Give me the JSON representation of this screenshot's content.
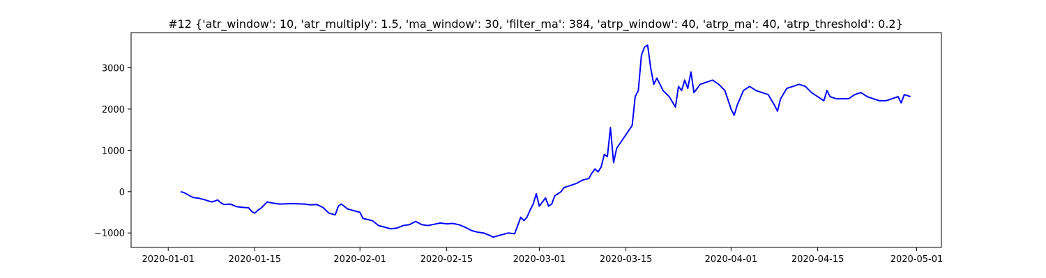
{
  "chart_data": {
    "type": "line",
    "title": "#12 {'atr_window': 10, 'atr_multiply': 1.5, 'ma_window': 30, 'filter_ma': 384, 'atrp_window': 40, 'atrp_ma': 40, 'atrp_threshold': 0.2}",
    "xlabel": "",
    "ylabel": "",
    "xlim": [
      "2019-12-26",
      "2020-05-05"
    ],
    "ylim": [
      -1350,
      3850
    ],
    "grid": false,
    "x_ticks": [
      "2020-01-01",
      "2020-01-15",
      "2020-02-01",
      "2020-02-15",
      "2020-03-01",
      "2020-03-15",
      "2020-04-01",
      "2020-04-15",
      "2020-05-01"
    ],
    "y_ticks": [
      -1000,
      0,
      1000,
      2000,
      3000
    ],
    "y_tick_labels": [
      "−1000",
      "0",
      "1000",
      "2000",
      "3000"
    ],
    "series": [
      {
        "color": "#0000ff",
        "points": [
          [
            "2020-01-03",
            0
          ],
          [
            "2020-01-03T12",
            -20
          ],
          [
            "2020-01-04",
            -60
          ],
          [
            "2020-01-04T12",
            -100
          ],
          [
            "2020-01-05",
            -140
          ],
          [
            "2020-01-06",
            -160
          ],
          [
            "2020-01-07",
            -200
          ],
          [
            "2020-01-08",
            -250
          ],
          [
            "2020-01-08T12",
            -230
          ],
          [
            "2020-01-09",
            -200
          ],
          [
            "2020-01-09T12",
            -270
          ],
          [
            "2020-01-10",
            -310
          ],
          [
            "2020-01-11",
            -300
          ],
          [
            "2020-01-12",
            -360
          ],
          [
            "2020-01-13",
            -380
          ],
          [
            "2020-01-14",
            -390
          ],
          [
            "2020-01-14T12",
            -480
          ],
          [
            "2020-01-15",
            -520
          ],
          [
            "2020-01-15T12",
            -450
          ],
          [
            "2020-01-16",
            -400
          ],
          [
            "2020-01-17",
            -250
          ],
          [
            "2020-01-18",
            -280
          ],
          [
            "2020-01-19",
            -300
          ],
          [
            "2020-01-21",
            -290
          ],
          [
            "2020-01-23",
            -300
          ],
          [
            "2020-01-24",
            -320
          ],
          [
            "2020-01-25",
            -310
          ],
          [
            "2020-01-26",
            -380
          ],
          [
            "2020-01-27",
            -520
          ],
          [
            "2020-01-28",
            -560
          ],
          [
            "2020-01-28T12",
            -350
          ],
          [
            "2020-01-29",
            -300
          ],
          [
            "2020-01-30",
            -420
          ],
          [
            "2020-01-31",
            -460
          ],
          [
            "2020-02-01",
            -500
          ],
          [
            "2020-02-01T12",
            -650
          ],
          [
            "2020-02-03",
            -700
          ],
          [
            "2020-02-04",
            -820
          ],
          [
            "2020-02-05",
            -860
          ],
          [
            "2020-02-06",
            -900
          ],
          [
            "2020-02-07",
            -880
          ],
          [
            "2020-02-08",
            -820
          ],
          [
            "2020-02-09",
            -800
          ],
          [
            "2020-02-10",
            -720
          ],
          [
            "2020-02-11",
            -800
          ],
          [
            "2020-02-12",
            -820
          ],
          [
            "2020-02-13",
            -790
          ],
          [
            "2020-02-14",
            -760
          ],
          [
            "2020-02-15",
            -780
          ],
          [
            "2020-02-16",
            -770
          ],
          [
            "2020-02-17",
            -800
          ],
          [
            "2020-02-18",
            -860
          ],
          [
            "2020-02-19",
            -940
          ],
          [
            "2020-02-20",
            -980
          ],
          [
            "2020-02-21",
            -1000
          ],
          [
            "2020-02-22",
            -1060
          ],
          [
            "2020-02-22T12",
            -1100
          ],
          [
            "2020-02-23",
            -1080
          ],
          [
            "2020-02-25",
            -1000
          ],
          [
            "2020-02-26",
            -1020
          ],
          [
            "2020-02-26T12",
            -820
          ],
          [
            "2020-02-27",
            -620
          ],
          [
            "2020-02-27T12",
            -700
          ],
          [
            "2020-02-28",
            -620
          ],
          [
            "2020-02-28T12",
            -450
          ],
          [
            "2020-02-29",
            -300
          ],
          [
            "2020-02-29T12",
            -50
          ],
          [
            "2020-03-01",
            -350
          ],
          [
            "2020-03-01T12",
            -250
          ],
          [
            "2020-03-02",
            -150
          ],
          [
            "2020-03-02T12",
            -350
          ],
          [
            "2020-03-03",
            -300
          ],
          [
            "2020-03-03T12",
            -100
          ],
          [
            "2020-03-04",
            -50
          ],
          [
            "2020-03-04T12",
            0
          ],
          [
            "2020-03-05",
            100
          ],
          [
            "2020-03-06",
            150
          ],
          [
            "2020-03-07",
            200
          ],
          [
            "2020-03-08",
            280
          ],
          [
            "2020-03-09",
            320
          ],
          [
            "2020-03-09T12",
            450
          ],
          [
            "2020-03-10",
            550
          ],
          [
            "2020-03-10T12",
            480
          ],
          [
            "2020-03-11",
            600
          ],
          [
            "2020-03-11T12",
            900
          ],
          [
            "2020-03-12",
            850
          ],
          [
            "2020-03-12T12",
            1550
          ],
          [
            "2020-03-13",
            700
          ],
          [
            "2020-03-13T12",
            1050
          ],
          [
            "2020-03-16",
            1600
          ],
          [
            "2020-03-16T12",
            2300
          ],
          [
            "2020-03-17",
            2450
          ],
          [
            "2020-03-17T12",
            3300
          ],
          [
            "2020-03-18",
            3500
          ],
          [
            "2020-03-18T12",
            3550
          ],
          [
            "2020-03-19",
            3000
          ],
          [
            "2020-03-19T12",
            2600
          ],
          [
            "2020-03-20",
            2750
          ],
          [
            "2020-03-21",
            2450
          ],
          [
            "2020-03-22",
            2300
          ],
          [
            "2020-03-23",
            2050
          ],
          [
            "2020-03-23T12",
            2550
          ],
          [
            "2020-03-24",
            2450
          ],
          [
            "2020-03-24T12",
            2700
          ],
          [
            "2020-03-25",
            2500
          ],
          [
            "2020-03-25T12",
            2900
          ],
          [
            "2020-03-26",
            2400
          ],
          [
            "2020-03-27",
            2600
          ],
          [
            "2020-03-28",
            2650
          ],
          [
            "2020-03-29",
            2700
          ],
          [
            "2020-03-30",
            2600
          ],
          [
            "2020-03-31",
            2450
          ],
          [
            "2020-04-01",
            2000
          ],
          [
            "2020-04-01T12",
            1850
          ],
          [
            "2020-04-02",
            2100
          ],
          [
            "2020-04-03",
            2450
          ],
          [
            "2020-04-04",
            2550
          ],
          [
            "2020-04-05",
            2450
          ],
          [
            "2020-04-06",
            2400
          ],
          [
            "2020-04-07",
            2350
          ],
          [
            "2020-04-08",
            2100
          ],
          [
            "2020-04-08T12",
            1950
          ],
          [
            "2020-04-09",
            2250
          ],
          [
            "2020-04-10",
            2500
          ],
          [
            "2020-04-11",
            2550
          ],
          [
            "2020-04-12",
            2600
          ],
          [
            "2020-04-13",
            2550
          ],
          [
            "2020-04-14",
            2400
          ],
          [
            "2020-04-15",
            2300
          ],
          [
            "2020-04-16",
            2200
          ],
          [
            "2020-04-16T12",
            2450
          ],
          [
            "2020-04-17",
            2300
          ],
          [
            "2020-04-18",
            2250
          ],
          [
            "2020-04-20",
            2250
          ],
          [
            "2020-04-21",
            2350
          ],
          [
            "2020-04-22",
            2400
          ],
          [
            "2020-04-23",
            2300
          ],
          [
            "2020-04-24",
            2250
          ],
          [
            "2020-04-25",
            2200
          ],
          [
            "2020-04-26",
            2200
          ],
          [
            "2020-04-27",
            2250
          ],
          [
            "2020-04-28",
            2300
          ],
          [
            "2020-04-28T12",
            2150
          ],
          [
            "2020-04-29",
            2350
          ],
          [
            "2020-04-30",
            2300
          ]
        ]
      }
    ]
  }
}
